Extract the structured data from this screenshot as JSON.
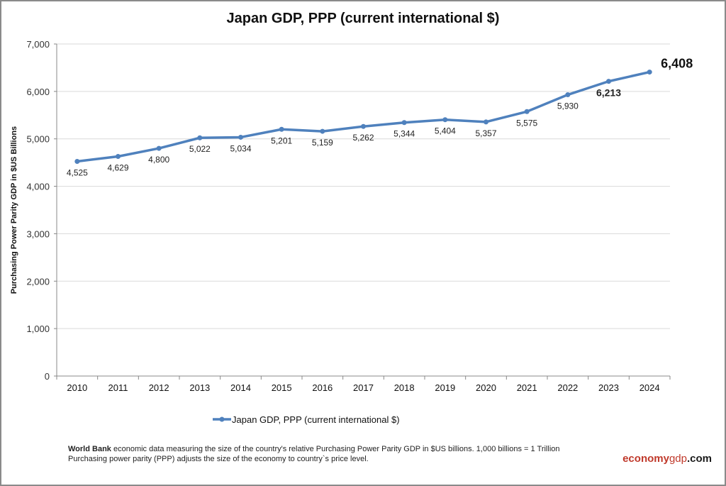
{
  "chart_data": {
    "type": "line",
    "title": "Japan GDP, PPP (current international $)",
    "ylabel": "Purchasing Power Parity GDP in $US Billions",
    "xlabel": "",
    "categories": [
      "2010",
      "2011",
      "2012",
      "2013",
      "2014",
      "2015",
      "2016",
      "2017",
      "2018",
      "2019",
      "2020",
      "2021",
      "2022",
      "2023",
      "2024"
    ],
    "series": [
      {
        "name": "Japan GDP, PPP (current international $)",
        "values": [
          4525,
          4629,
          4800,
          5022,
          5034,
          5201,
          5159,
          5262,
          5344,
          5404,
          5357,
          5575,
          5930,
          6213,
          6408
        ],
        "color": "#4f81bd"
      }
    ],
    "data_labels": [
      "4,525",
      "4,629",
      "4,800",
      "5,022",
      "5,034",
      "5,201",
      "5,159",
      "5,262",
      "5,344",
      "5,404",
      "5,357",
      "5,575",
      "5,930",
      "6,213",
      "6,408"
    ],
    "ylim": [
      0,
      7000
    ],
    "yticks": [
      "0",
      "1,000",
      "2,000",
      "3,000",
      "4,000",
      "5,000",
      "6,000",
      "7,000"
    ],
    "grid": true,
    "legend_position": "bottom"
  },
  "footer": {
    "source_bold": "World Bank",
    "line1": " economic data  measuring the size of the country's relative  Purchasing Power Parity GDP in $US billions. 1,000 billions = 1 Trillion",
    "line2": "Purchasing power parity (PPP) adjusts the size of the economy to country`s price level."
  },
  "brand": {
    "part1": "economy",
    "part2": "gdp",
    "part3": ".com",
    "color1": "#c0392b",
    "color2": "#c0392b",
    "color3": "#1a1a1a"
  }
}
